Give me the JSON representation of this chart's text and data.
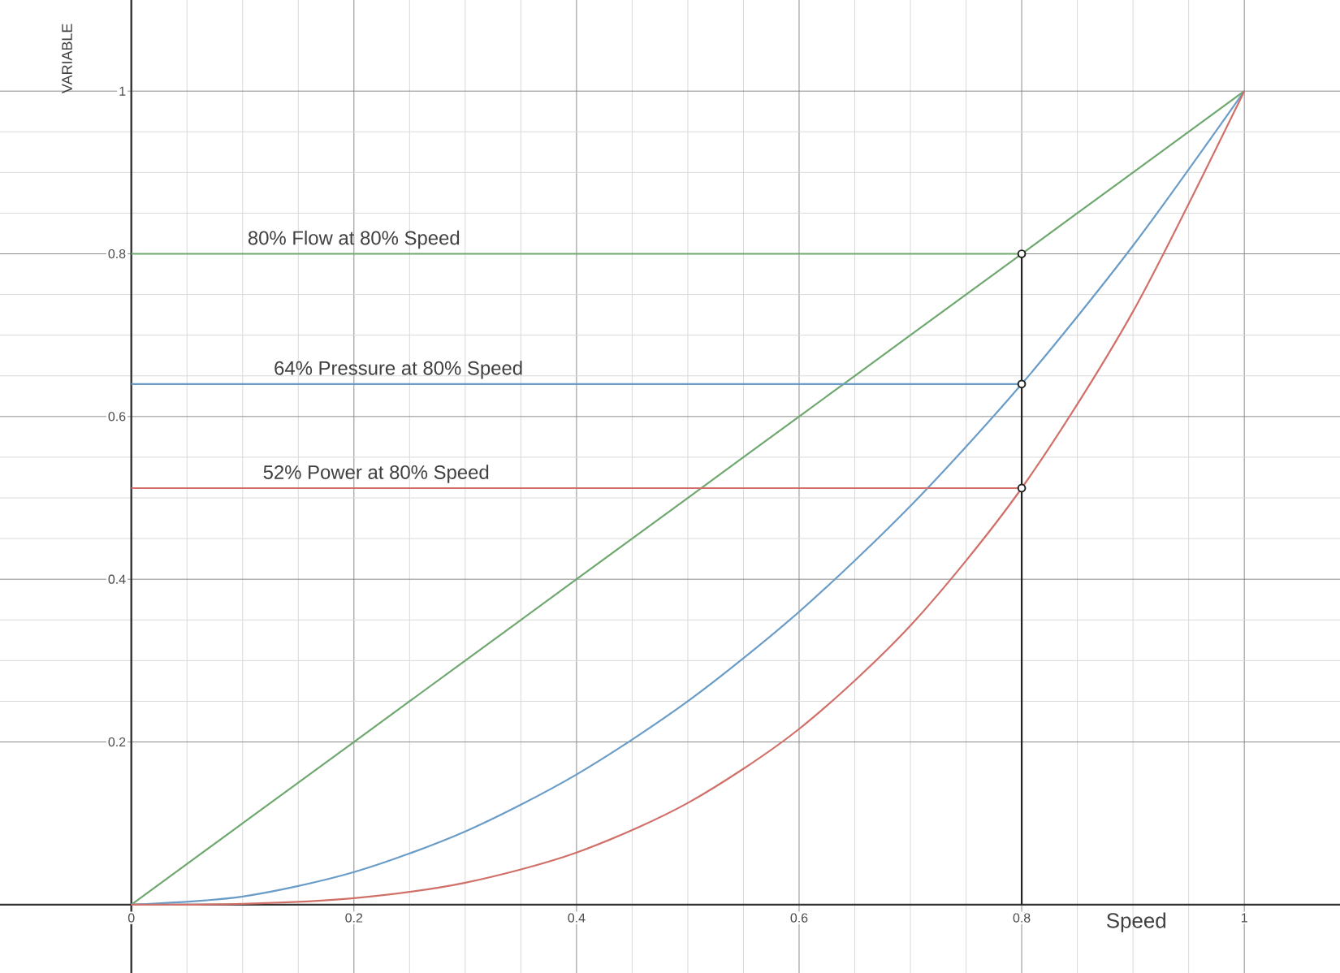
{
  "chart_data": {
    "type": "line",
    "xlabel": "Speed",
    "ylabel": "VARIABLE",
    "xlim": [
      -0.118,
      1.086
    ],
    "ylim": [
      -0.084,
      1.112
    ],
    "xticks": [
      0,
      0.2,
      0.4,
      0.6,
      0.8,
      1
    ],
    "yticks": [
      0.2,
      0.4,
      0.6,
      0.8,
      1
    ],
    "grid": true,
    "line_style": "solid",
    "series": [
      {
        "color": "#6fa86f",
        "x": [
          0,
          0.1,
          0.2,
          0.3,
          0.4,
          0.5,
          0.6,
          0.7,
          0.8,
          0.9,
          1
        ],
        "values": [
          0,
          0.1,
          0.2,
          0.3,
          0.4,
          0.5,
          0.6,
          0.7,
          0.8,
          0.9,
          1
        ]
      },
      {
        "color": "#6a9cc8",
        "x": [
          0,
          0.1,
          0.2,
          0.3,
          0.4,
          0.5,
          0.6,
          0.7,
          0.8,
          0.9,
          1
        ],
        "values": [
          0,
          0.01,
          0.04,
          0.09,
          0.16,
          0.25,
          0.36,
          0.49,
          0.64,
          0.81,
          1
        ]
      },
      {
        "color": "#d07068",
        "x": [
          0,
          0.1,
          0.2,
          0.3,
          0.4,
          0.5,
          0.6,
          0.7,
          0.8,
          0.9,
          1
        ],
        "values": [
          0,
          0.001,
          0.008,
          0.027,
          0.064,
          0.125,
          0.216,
          0.343,
          0.512,
          0.729,
          1
        ]
      },
      {
        "color": "#6fa86f",
        "x": [
          0,
          0.8
        ],
        "values": [
          0.8,
          0.8
        ]
      },
      {
        "color": "#6a9cc8",
        "x": [
          0,
          0.8
        ],
        "values": [
          0.64,
          0.64
        ]
      },
      {
        "color": "#d07068",
        "x": [
          0,
          0.8
        ],
        "values": [
          0.512,
          0.512
        ]
      },
      {
        "color": "#222222",
        "x": [
          0.8,
          0.8
        ],
        "values": [
          0,
          0.8
        ]
      },
      {
        "type": "scatter",
        "marker": "circle",
        "color": "#222222",
        "x": [
          0.8,
          0.8,
          0.8
        ],
        "values": [
          0.8,
          0.64,
          0.512
        ]
      }
    ],
    "annotations": [
      {
        "text": "80% Flow at 80% Speed",
        "x": 0.2,
        "y": 0.8
      },
      {
        "text": "64% Pressure at 80% Speed",
        "x": 0.24,
        "y": 0.64
      },
      {
        "text": "52% Power at 80% Speed",
        "x": 0.22,
        "y": 0.512
      }
    ]
  }
}
